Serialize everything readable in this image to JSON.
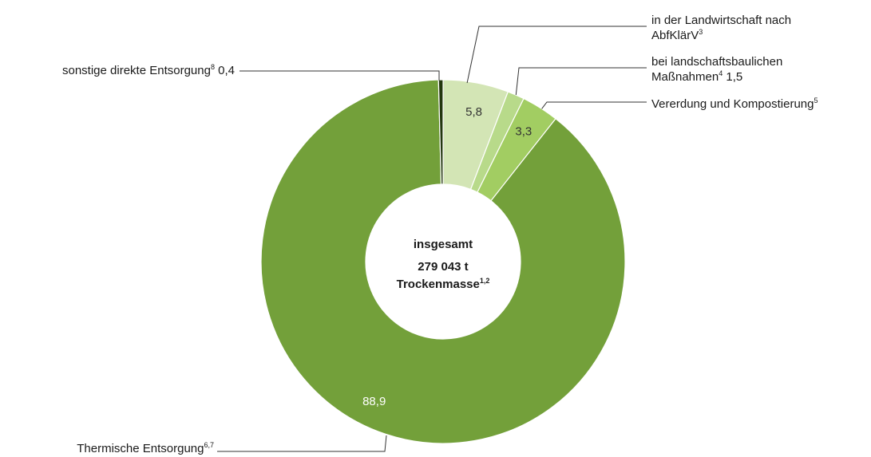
{
  "chart_data": {
    "type": "pie",
    "variant": "donut",
    "center": {
      "line1": "insgesamt",
      "line2": "279 043 t",
      "line3": "Trockenmasse",
      "line3_sup": "1,2"
    },
    "slices": [
      {
        "label": "in der Landwirtschaft nach",
        "label2": "AbfKlärV",
        "sup": "3",
        "value": 5.8,
        "value_label": "5,8",
        "color": "#d3e5b5",
        "value_color": "#333333"
      },
      {
        "label": "bei landschaftsbaulichen",
        "label2": "Maßnahmen",
        "sup": "4",
        "after": " 1,5",
        "value": 1.5,
        "value_label": "",
        "color": "#b8da8a",
        "value_color": "#333333"
      },
      {
        "label": "Vererdung und Kompostierung",
        "sup": "5",
        "value": 3.3,
        "value_label": "3,3",
        "color": "#a2cd62",
        "value_color": "#333333"
      },
      {
        "label": "Thermische Entsorgung",
        "sup": "6,7",
        "value": 88.9,
        "value_label": "88,9",
        "color": "#73a03a",
        "value_color": "#ffffff"
      },
      {
        "label": "sonstige direkte Entsorgung",
        "sup": "8",
        "after": " 0,4",
        "value": 0.4,
        "value_label": "",
        "color": "#24370f",
        "value_color": "#ffffff"
      }
    ]
  }
}
